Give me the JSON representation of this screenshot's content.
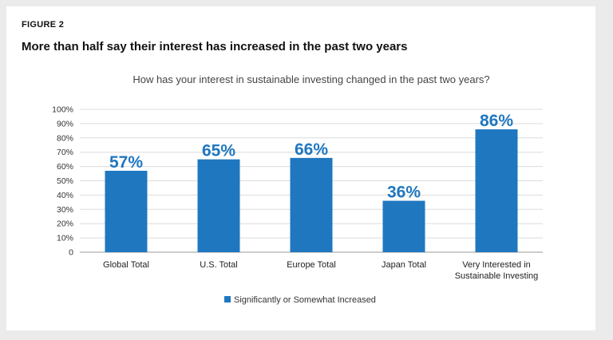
{
  "figure_label": "FIGURE 2",
  "headline": "More than half say their interest has increased in the past two years",
  "chart_data": {
    "type": "bar",
    "title": "How has your interest in sustainable investing changed in the past two years?",
    "categories": [
      [
        "Global Total"
      ],
      [
        "U.S. Total"
      ],
      [
        "Europe Total"
      ],
      [
        "Japan Total"
      ],
      [
        "Very Interested in",
        "Sustainable Investing"
      ]
    ],
    "series": [
      {
        "name": "Significantly or Somewhat Increased",
        "values": [
          57,
          65,
          66,
          36,
          86
        ],
        "value_labels": [
          "57%",
          "65%",
          "66%",
          "36%",
          "86%"
        ],
        "color": "#1f77c0"
      }
    ],
    "ylim": [
      0,
      100
    ],
    "yticks": [
      {
        "value": 0,
        "label": "0"
      },
      {
        "value": 10,
        "label": "10%"
      },
      {
        "value": 20,
        "label": "20%"
      },
      {
        "value": 30,
        "label": "30%"
      },
      {
        "value": 40,
        "label": "40%"
      },
      {
        "value": 50,
        "label": "50%"
      },
      {
        "value": 60,
        "label": "60%"
      },
      {
        "value": 70,
        "label": "70%"
      },
      {
        "value": 80,
        "label": "80%"
      },
      {
        "value": 90,
        "label": "90%"
      },
      {
        "value": 100,
        "label": "100%"
      }
    ],
    "xlabel": "",
    "ylabel": "",
    "grid": true,
    "legend_position": "bottom"
  }
}
